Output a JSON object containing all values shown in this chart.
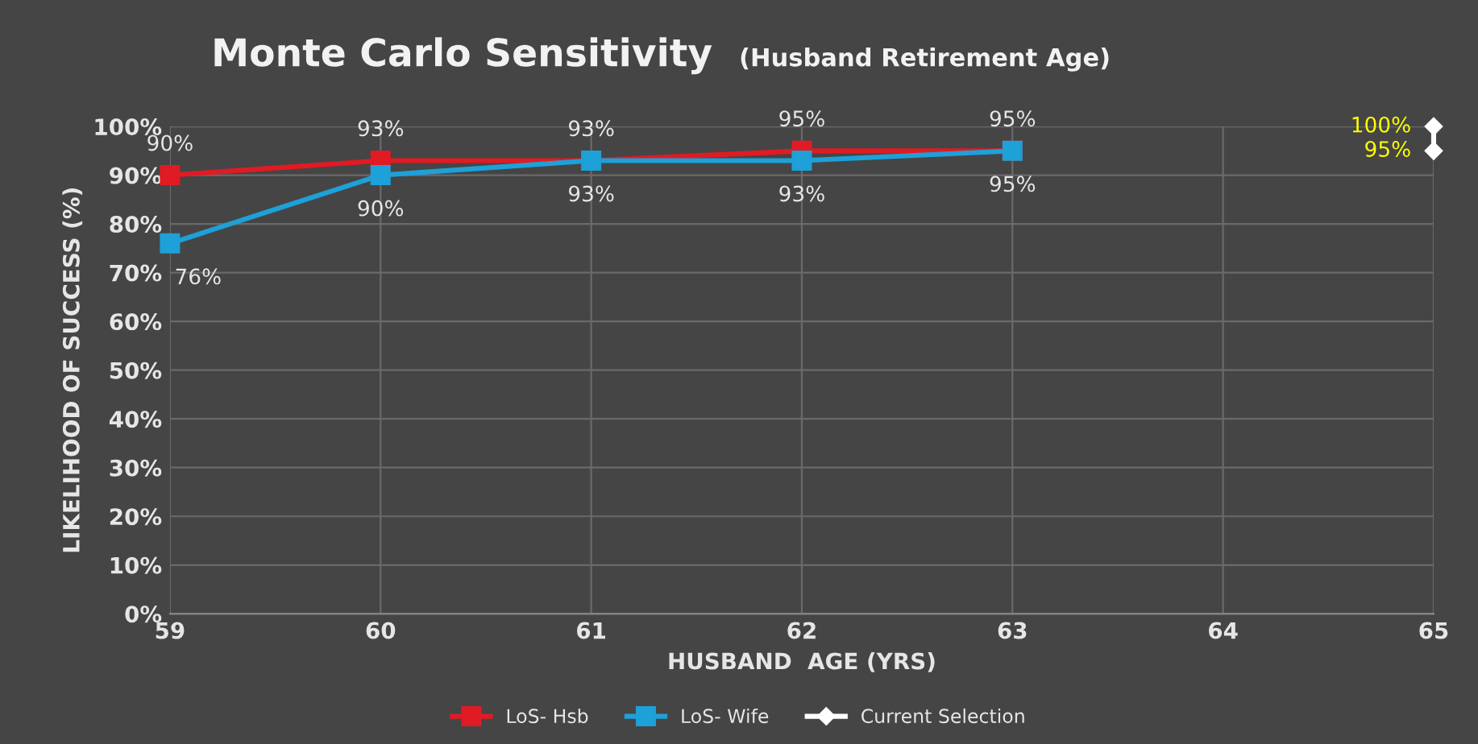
{
  "chart_data": {
    "type": "line",
    "title": "Monte Carlo Sensitivity",
    "subtitle": "(Husband Retirement Age)",
    "xlabel": "HUSBAND  AGE (YRS)",
    "ylabel": "LIKELIHOOD OF SUCCESS (%)",
    "x": [
      59,
      60,
      61,
      62,
      63
    ],
    "series": [
      {
        "name": "LoS- Hsb",
        "color": "#e01b24",
        "marker": "square",
        "values": [
          90,
          93,
          93,
          95,
          95
        ],
        "value_labels": [
          "90%",
          "93%",
          "93%",
          "95%",
          "95%"
        ]
      },
      {
        "name": "LoS- Wife",
        "color": "#1ea0d8",
        "marker": "square",
        "values": [
          76,
          90,
          93,
          93,
          95
        ],
        "value_labels": [
          "76%",
          "90%",
          "93%",
          "93%",
          "95%"
        ]
      },
      {
        "name": "Current Selection",
        "color": "#ffffff",
        "marker": "diamond",
        "x": [
          65,
          65
        ],
        "values": [
          100,
          95
        ],
        "value_labels": [
          "100%",
          "95%"
        ]
      }
    ],
    "xlim": [
      59,
      65
    ],
    "xticks": [
      59,
      60,
      61,
      62,
      63,
      64,
      65
    ],
    "ylim": [
      0,
      100
    ],
    "yticks": [
      {
        "value": 0,
        "label": "0%"
      },
      {
        "value": 10,
        "label": "10%"
      },
      {
        "value": 20,
        "label": "20%"
      },
      {
        "value": 30,
        "label": "30%"
      },
      {
        "value": 40,
        "label": "40%"
      },
      {
        "value": 50,
        "label": "50%"
      },
      {
        "value": 60,
        "label": "60%"
      },
      {
        "value": 70,
        "label": "70%"
      },
      {
        "value": 80,
        "label": "80%"
      },
      {
        "value": 90,
        "label": "90%"
      },
      {
        "value": 100,
        "label": "100%"
      }
    ],
    "grid": true,
    "legend": "bottom",
    "line_style": "solid"
  }
}
